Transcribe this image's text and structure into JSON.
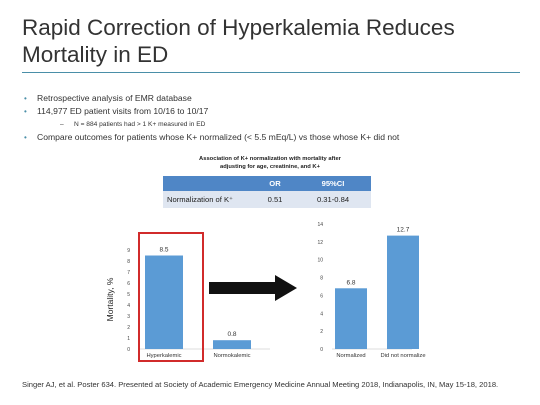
{
  "slide": {
    "title": "Rapid Correction of Hyperkalemia Reduces Mortality in ED",
    "bullets": [
      "Retrospective analysis of EMR database",
      "114,977 ED patient visits from 10/16 to 10/17"
    ],
    "sub_bullet": "N = 884 patients had > 1 K+ measured in ED",
    "bullet_3": "Compare outcomes for patients whose K+ normalized (< 5.5 mEq/L) vs those whose K+ did not",
    "footer": "Singer AJ, et al. Poster 634. Presented at Society of Academic Emergency Medicine Annual Meeting 2018, Indianapolis, IN, May 15-18, 2018.",
    "colors": {
      "accent": "#4a8fa8",
      "bar": "#5b9bd5",
      "highlight": "#d12b2b",
      "table_header": "#4f86c6"
    }
  },
  "table": {
    "caption_line1": "Association of K+ normalization with mortality after",
    "caption_line2": "adjusting for age, creatinine, and K+",
    "headers": [
      "",
      "OR",
      "95%CI"
    ],
    "rows": [
      [
        "Normalization of K⁺",
        "0.51",
        "0.31-0.84"
      ]
    ]
  },
  "chart_data": [
    {
      "type": "bar",
      "categories": [
        "Hyperkalemic",
        "Normokalemic"
      ],
      "values": [
        8.5,
        0.8
      ],
      "ylabel": "Mortality, %",
      "ylim": [
        0,
        9
      ],
      "yticks": [
        0,
        1,
        2,
        3,
        4,
        5,
        6,
        7,
        8,
        9
      ],
      "data_labels": [
        "8.5",
        "0.8"
      ]
    },
    {
      "type": "bar",
      "categories": [
        "Normalized",
        "Did not normalize"
      ],
      "values": [
        6.8,
        12.7
      ],
      "ylabel": "",
      "ylim": [
        0,
        14
      ],
      "yticks": [
        0,
        2,
        4,
        6,
        8,
        10,
        12,
        14
      ],
      "data_labels": [
        "6.8",
        "12.7"
      ]
    }
  ]
}
